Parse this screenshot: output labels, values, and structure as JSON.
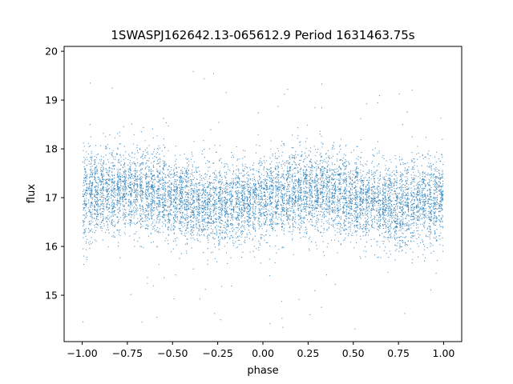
{
  "chart_data": {
    "type": "scatter",
    "title": "1SWASPJ162642.13-065612.9 Period 1631463.75s",
    "xlabel": "phase",
    "ylabel": "flux",
    "xlim": [
      -1.1,
      1.1
    ],
    "ylim": [
      14.05,
      20.1
    ],
    "xticks": [
      -1.0,
      -0.75,
      -0.5,
      -0.25,
      0.0,
      0.25,
      0.5,
      0.75,
      1.0
    ],
    "xtick_labels": [
      "−1.00",
      "−0.75",
      "−0.50",
      "−0.25",
      "0.00",
      "0.25",
      "0.50",
      "0.75",
      "1.00"
    ],
    "yticks": [
      15,
      16,
      17,
      18,
      19,
      20
    ],
    "ytick_labels": [
      "15",
      "16",
      "17",
      "18",
      "19",
      "20"
    ],
    "grid": false,
    "legend": "none",
    "marker_color": "#1f77b4",
    "series": [
      {
        "x_range": [
          -1.0,
          1.0
        ],
        "mean_flux": 17.0,
        "typical_flux_range": [
          15.8,
          18.3
        ],
        "full_flux_range": [
          14.3,
          19.7
        ],
        "point_density": "dense, many thousands of points",
        "phase_coverage": "clustered in vertical bands across the full phase range"
      }
    ]
  }
}
